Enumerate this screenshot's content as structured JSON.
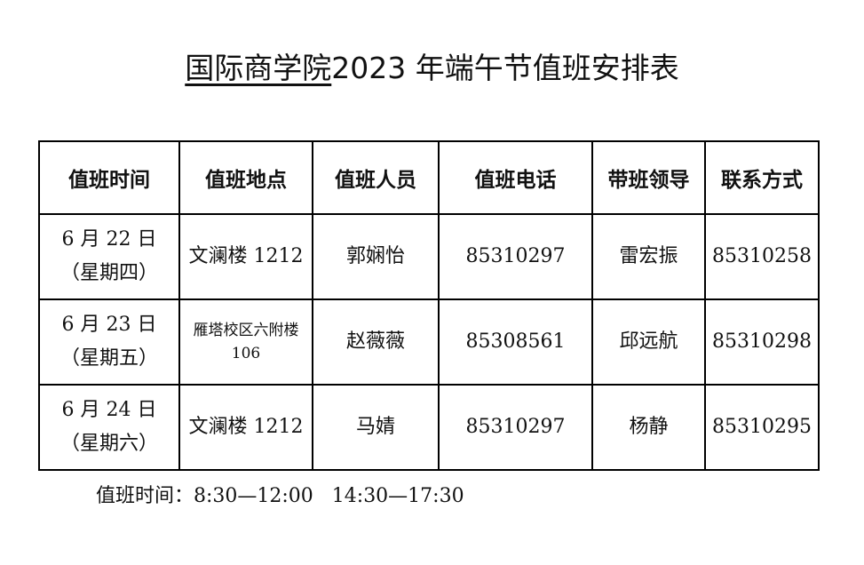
{
  "title": {
    "underlined": "国际商学院",
    "rest": "2023 年端午节值班安排表"
  },
  "table": {
    "headers": [
      "值班时间",
      "值班地点",
      "值班人员",
      "值班电话",
      "带班领导",
      "联系方式"
    ],
    "rows": [
      {
        "date": "6 月 22 日",
        "weekday": "（星期四）",
        "location": "文澜楼 1212",
        "location2": "",
        "staff": "郭娴怡",
        "phone": "85310297",
        "leader": "雷宏振",
        "contact": "85310258"
      },
      {
        "date": "6 月 23 日",
        "weekday": "（星期五）",
        "location": "雁塔校区六附楼",
        "location2": "106",
        "staff": "赵薇薇",
        "phone": "85308561",
        "leader": "邱远航",
        "contact": "85310298"
      },
      {
        "date": "6 月 24 日",
        "weekday": "（星期六）",
        "location": "文澜楼 1212",
        "location2": "",
        "staff": "马婧",
        "phone": "85310297",
        "leader": "杨静",
        "contact": "85310295"
      }
    ]
  },
  "note": "值班时间：8:30—12:00   14:30—17:30"
}
